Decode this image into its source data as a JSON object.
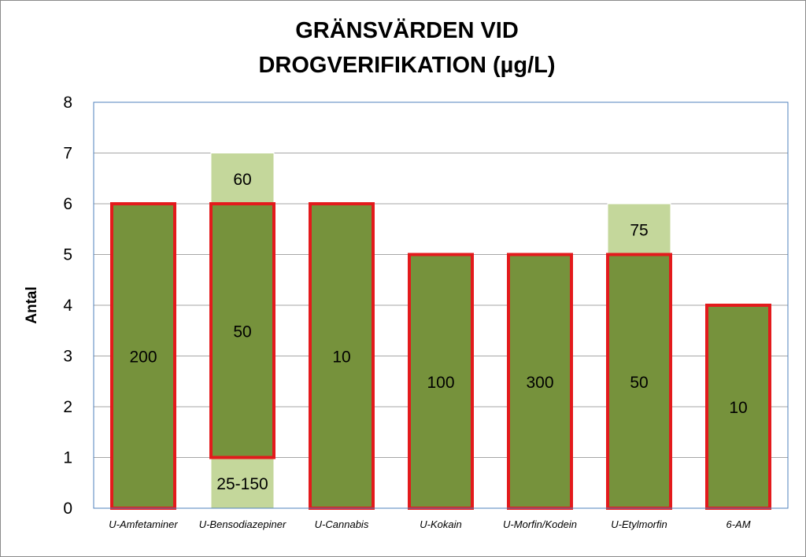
{
  "chart_data": {
    "type": "bar",
    "title_lines": [
      "GRÄNSVÄRDEN VID",
      "DROGVERIFIKATION (µg/L)"
    ],
    "xlabel": "",
    "ylabel": "Antal",
    "ylim": [
      0,
      8
    ],
    "yticks": [
      0,
      1,
      2,
      3,
      4,
      5,
      6,
      7,
      8
    ],
    "grid": true,
    "categories": [
      "U-Amfetaminer",
      "U-Bensodiazepiner",
      "U-Cannabis",
      "U-Kokain",
      "U-Morfin/Kodein",
      "U-Etylmorfin",
      "6-AM"
    ],
    "bars": [
      {
        "category": "U-Amfetaminer",
        "start": 0,
        "end": 6,
        "label": "200"
      },
      {
        "category": "U-Bensodiazepiner",
        "start": 1,
        "end": 6,
        "label": "50"
      },
      {
        "category": "U-Cannabis",
        "start": 0,
        "end": 6,
        "label": "10"
      },
      {
        "category": "U-Kokain",
        "start": 0,
        "end": 5,
        "label": "100"
      },
      {
        "category": "U-Morfin/Kodein",
        "start": 0,
        "end": 5,
        "label": "300"
      },
      {
        "category": "U-Etylmorfin",
        "start": 0,
        "end": 5,
        "label": "50"
      },
      {
        "category": "6-AM",
        "start": 0,
        "end": 4,
        "label": "10"
      }
    ],
    "extra_segments": [
      {
        "category": "U-Bensodiazepiner",
        "start": 6,
        "end": 7,
        "label": "60"
      },
      {
        "category": "U-Bensodiazepiner",
        "start": 0,
        "end": 1,
        "label": "25-150"
      },
      {
        "category": "U-Etylmorfin",
        "start": 5,
        "end": 6,
        "label": "75"
      }
    ],
    "colors": {
      "bar_fill": "#76923c",
      "bar_border": "#e31a1c",
      "extra_fill": "#c4d79b",
      "grid": "#a6a6a6",
      "plot_border": "#4f81bd"
    }
  }
}
